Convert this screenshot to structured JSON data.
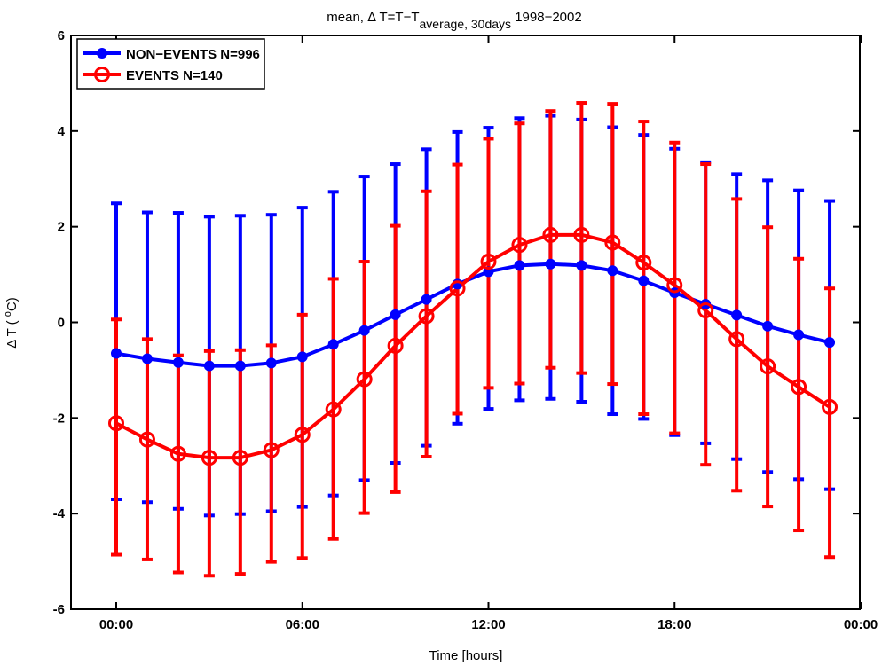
{
  "chart_data": {
    "type": "line",
    "title": {
      "prefix": "mean, Δ T=T−T",
      "subscript": "average, 30days",
      "suffix": "  1998−2002"
    },
    "xlabel": "Time [hours]",
    "ylabel": {
      "main": "Δ T ( ",
      "superscript": "o",
      "unit": "C)"
    },
    "xlim": [
      -1,
      39
    ],
    "ylim": [
      -6,
      6
    ],
    "x_ticks": [
      {
        "value": 0,
        "label": "00:00"
      },
      {
        "value": 6,
        "label": "06:00"
      },
      {
        "value": 12,
        "label": "12:00"
      },
      {
        "value": 18,
        "label": "18:00"
      },
      {
        "value": 24,
        "label": "00:00"
      }
    ],
    "y_ticks": [
      -6,
      -4,
      -2,
      0,
      2,
      4,
      6
    ],
    "grid": false,
    "legend_position": "top-left",
    "x": [
      0,
      1,
      2,
      3,
      4,
      5,
      6,
      7,
      8,
      9,
      10,
      11,
      12,
      13,
      14,
      15,
      16,
      17,
      18,
      19,
      20,
      21,
      22,
      23
    ],
    "series": [
      {
        "name": "NON−EVENTS N=996",
        "color": "#0000ff",
        "marker": "filled-circle",
        "values": [
          -0.65,
          -0.76,
          -0.84,
          -0.91,
          -0.91,
          -0.85,
          -0.72,
          -0.46,
          -0.17,
          0.16,
          0.48,
          0.8,
          1.06,
          1.19,
          1.22,
          1.19,
          1.08,
          0.87,
          0.62,
          0.38,
          0.15,
          -0.08,
          -0.26,
          -0.42
        ],
        "error_upper": [
          2.49,
          2.3,
          2.29,
          2.21,
          2.23,
          2.25,
          2.4,
          2.73,
          3.05,
          3.31,
          3.62,
          3.98,
          4.07,
          4.27,
          4.32,
          4.24,
          4.08,
          3.92,
          3.63,
          3.35,
          3.1,
          2.97,
          2.76,
          2.54
        ],
        "error_lower": [
          -3.7,
          -3.76,
          -3.9,
          -4.04,
          -4.01,
          -3.95,
          -3.86,
          -3.62,
          -3.3,
          -2.94,
          -2.58,
          -2.12,
          -1.81,
          -1.63,
          -1.6,
          -1.66,
          -1.92,
          -2.02,
          -2.36,
          -2.53,
          -2.86,
          -3.13,
          -3.28,
          -3.49
        ]
      },
      {
        "name": "EVENTS N=140",
        "color": "#ff0000",
        "marker": "open-circle",
        "values": [
          -2.11,
          -2.45,
          -2.75,
          -2.83,
          -2.83,
          -2.67,
          -2.35,
          -1.82,
          -1.19,
          -0.49,
          0.13,
          0.71,
          1.27,
          1.62,
          1.83,
          1.83,
          1.67,
          1.25,
          0.78,
          0.25,
          -0.35,
          -0.92,
          -1.35,
          -1.77
        ],
        "error_upper": [
          0.06,
          -0.35,
          -0.69,
          -0.6,
          -0.58,
          -0.48,
          0.16,
          0.91,
          1.27,
          2.02,
          2.74,
          3.3,
          3.84,
          4.16,
          4.42,
          4.59,
          4.57,
          4.2,
          3.76,
          3.31,
          2.58,
          1.99,
          1.33,
          0.71
        ],
        "error_lower": [
          -4.86,
          -4.96,
          -5.23,
          -5.3,
          -5.26,
          -5.01,
          -4.93,
          -4.53,
          -3.99,
          -3.55,
          -2.81,
          -1.91,
          -1.37,
          -1.28,
          -0.95,
          -1.06,
          -1.29,
          -1.92,
          -2.32,
          -2.98,
          -3.52,
          -3.85,
          -4.35,
          -4.91
        ]
      }
    ]
  }
}
